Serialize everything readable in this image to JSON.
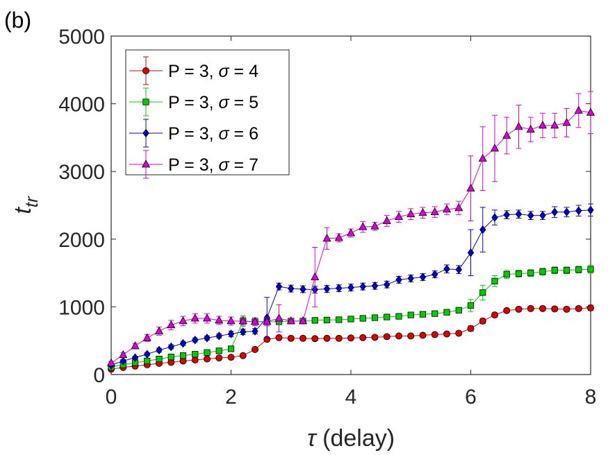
{
  "chart_data": {
    "type": "line",
    "panel_label": "(b)",
    "xlabel_symbol": "τ",
    "xlabel_text": " (delay)",
    "ylabel_main": "t",
    "ylabel_sub": "tr",
    "xlim": [
      0,
      8
    ],
    "ylim": [
      0,
      5000
    ],
    "xticks": [
      0,
      2,
      4,
      6,
      8
    ],
    "yticks": [
      0,
      1000,
      2000,
      3000,
      4000,
      5000
    ],
    "xtick_labels": [
      "0",
      "2",
      "4",
      "6",
      "8"
    ],
    "ytick_labels": [
      "0",
      "1000",
      "2000",
      "3000",
      "4000",
      "5000"
    ],
    "grid": false,
    "legend_position": "top-left",
    "x": [
      0,
      0.2,
      0.4,
      0.6,
      0.8,
      1.0,
      1.2,
      1.4,
      1.6,
      1.8,
      2.0,
      2.2,
      2.4,
      2.6,
      2.8,
      3.0,
      3.2,
      3.4,
      3.6,
      3.8,
      4.0,
      4.2,
      4.4,
      4.6,
      4.8,
      5.0,
      5.2,
      5.4,
      5.6,
      5.8,
      6.0,
      6.2,
      6.4,
      6.6,
      6.8,
      7.0,
      7.2,
      7.4,
      7.6,
      7.8,
      8.0
    ],
    "series": [
      {
        "name": "P = 3, σ = 4",
        "legend_prefix": "P = 3, ",
        "legend_sigma": "σ",
        "legend_suffix": " = 4",
        "color": "#dd0000",
        "marker": "circle",
        "values": [
          80,
          105,
          125,
          145,
          165,
          180,
          200,
          215,
          230,
          245,
          255,
          280,
          370,
          520,
          545,
          535,
          535,
          530,
          535,
          535,
          540,
          545,
          550,
          560,
          570,
          570,
          580,
          590,
          600,
          610,
          680,
          790,
          880,
          945,
          965,
          975,
          975,
          970,
          965,
          975,
          985
        ],
        "errors": [
          15,
          15,
          15,
          15,
          15,
          15,
          15,
          15,
          15,
          15,
          20,
          20,
          25,
          25,
          25,
          25,
          25,
          25,
          25,
          25,
          25,
          25,
          25,
          25,
          25,
          25,
          25,
          25,
          25,
          25,
          40,
          40,
          35,
          30,
          30,
          30,
          30,
          30,
          30,
          30,
          40
        ]
      },
      {
        "name": "P = 3, σ = 5",
        "legend_prefix": "P = 3, ",
        "legend_sigma": "σ",
        "legend_suffix": " = 5",
        "color": "#00cc00",
        "marker": "square",
        "values": [
          110,
          145,
          175,
          200,
          230,
          260,
          280,
          300,
          325,
          350,
          380,
          790,
          780,
          780,
          780,
          790,
          790,
          800,
          805,
          810,
          820,
          830,
          840,
          850,
          860,
          880,
          890,
          900,
          920,
          950,
          1020,
          1210,
          1380,
          1480,
          1490,
          1500,
          1520,
          1540,
          1540,
          1550,
          1555
        ],
        "errors": [
          20,
          20,
          20,
          20,
          20,
          20,
          20,
          20,
          20,
          20,
          25,
          80,
          40,
          40,
          30,
          30,
          30,
          30,
          30,
          30,
          30,
          30,
          30,
          30,
          30,
          30,
          30,
          30,
          30,
          30,
          90,
          110,
          80,
          60,
          50,
          50,
          50,
          50,
          50,
          50,
          60
        ]
      },
      {
        "name": "P = 3, σ = 6",
        "legend_prefix": "P = 3, ",
        "legend_sigma": "σ",
        "legend_suffix": " = 6",
        "color": "#0000dd",
        "marker": "diamond",
        "values": [
          140,
          200,
          250,
          300,
          360,
          410,
          460,
          510,
          540,
          570,
          600,
          630,
          640,
          840,
          1300,
          1270,
          1260,
          1255,
          1265,
          1275,
          1285,
          1300,
          1310,
          1330,
          1400,
          1420,
          1440,
          1480,
          1560,
          1550,
          1800,
          2140,
          2320,
          2360,
          2370,
          2350,
          2350,
          2400,
          2400,
          2420,
          2430
        ],
        "errors": [
          20,
          20,
          20,
          25,
          30,
          30,
          30,
          30,
          30,
          30,
          40,
          40,
          40,
          300,
          50,
          50,
          50,
          50,
          50,
          50,
          50,
          50,
          50,
          50,
          50,
          50,
          50,
          50,
          60,
          60,
          340,
          330,
          110,
          60,
          60,
          60,
          60,
          80,
          70,
          80,
          90
        ]
      },
      {
        "name": "P = 3, σ = 7",
        "legend_prefix": "P = 3, ",
        "legend_sigma": "σ",
        "legend_suffix": " = 7",
        "color": "#dd00dd",
        "marker": "triangle",
        "values": [
          170,
          290,
          420,
          540,
          640,
          730,
          790,
          830,
          830,
          800,
          790,
          790,
          780,
          780,
          830,
          790,
          790,
          1440,
          2010,
          2020,
          2090,
          2180,
          2190,
          2270,
          2330,
          2370,
          2390,
          2400,
          2440,
          2460,
          2750,
          3190,
          3340,
          3530,
          3660,
          3620,
          3680,
          3680,
          3720,
          3900,
          3870
        ],
        "errors": [
          25,
          35,
          40,
          50,
          60,
          70,
          70,
          70,
          70,
          60,
          60,
          60,
          60,
          60,
          200,
          40,
          40,
          440,
          160,
          60,
          60,
          80,
          60,
          80,
          80,
          80,
          80,
          80,
          80,
          100,
          480,
          470,
          490,
          270,
          320,
          180,
          180,
          180,
          210,
          250,
          310
        ]
      }
    ]
  }
}
